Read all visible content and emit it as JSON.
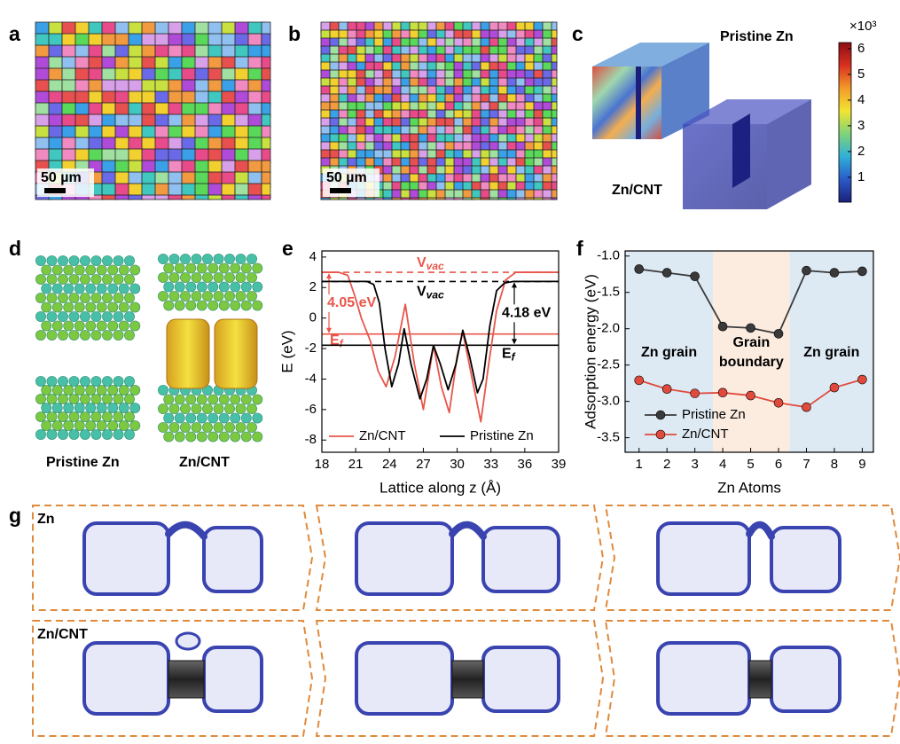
{
  "labels": [
    "a",
    "b",
    "c",
    "d",
    "e",
    "f",
    "g"
  ],
  "panel_a": {
    "scale_bar": "50 µm"
  },
  "panel_b": {
    "scale_bar": "50 µm"
  },
  "panel_c": {
    "top_label": "Pristine Zn",
    "bottom_label": "Zn/CNT"
  },
  "colorbar": {
    "multiplier": "×10³",
    "ticks": [
      1,
      2,
      3,
      4,
      5,
      6
    ],
    "lim": [
      0.03,
      6.24
    ],
    "colors": [
      "#1c1f7a",
      "#2a5bc8",
      "#2fb0d8",
      "#7fd37a",
      "#f2e531",
      "#f39a2a",
      "#d8301f",
      "#8c0d14"
    ]
  },
  "panel_d": {
    "left_label": "Pristine Zn",
    "right_label": "Zn/CNT"
  },
  "panel_g": {
    "row_labels": [
      "Zn",
      "Zn/CNT"
    ]
  },
  "chart_data": [
    {
      "type": "line",
      "xlabel": "Lattice along z (Å)",
      "ylabel": "E (eV)",
      "xlim": [
        18,
        39
      ],
      "ylim": [
        -8.8,
        4.4
      ],
      "xticks": [
        18,
        21,
        24,
        27,
        30,
        33,
        36,
        39
      ],
      "yticks": [
        -8,
        -6,
        -4,
        -2,
        0,
        2,
        4
      ],
      "series": [
        {
          "name": "Zn/CNT",
          "color": "#e8564a",
          "x": [
            18,
            19.5,
            20.3,
            20.9,
            21.5,
            22.3,
            23.0,
            23.7,
            24.5,
            25.4,
            26.2,
            27.0,
            27.9,
            28.6,
            29.3,
            30.0,
            30.5,
            31.2,
            32.1,
            32.8,
            33.5,
            34.3,
            35.2,
            39
          ],
          "values": [
            3.0,
            3.0,
            2.8,
            1.5,
            0.0,
            -1.5,
            -3.5,
            -4.5,
            -2.5,
            0.9,
            -3.0,
            -6.0,
            -1.8,
            -4.5,
            -6.2,
            -2.5,
            -0.9,
            -3.5,
            -6.8,
            -3.0,
            0.5,
            2.5,
            3.0,
            3.0
          ]
        },
        {
          "name": "Pristine Zn",
          "color": "#000000",
          "x": [
            18,
            21,
            22,
            22.6,
            23.1,
            23.6,
            24.2,
            24.8,
            25.3,
            25.9,
            26.7,
            27.3,
            27.9,
            28.5,
            29.2,
            29.9,
            30.5,
            31.1,
            31.8,
            32.3,
            32.9,
            33.5,
            34.2,
            35,
            39
          ],
          "values": [
            2.4,
            2.4,
            2.4,
            2.2,
            1.0,
            -2.0,
            -4.5,
            -3.0,
            -0.7,
            -3.0,
            -5.3,
            -4.0,
            -1.8,
            -3.0,
            -4.7,
            -3.0,
            -0.8,
            -2.5,
            -4.9,
            -4.0,
            -0.5,
            1.8,
            2.3,
            2.4,
            2.4
          ]
        }
      ],
      "reference_lines": [
        {
          "main": "V",
          "sub": "vac",
          "value": 3.0,
          "color": "#e8564a",
          "dashed": true
        },
        {
          "main": "V",
          "sub": "vac",
          "value": 2.4,
          "color": "#000000",
          "dashed": true
        },
        {
          "main": "E",
          "sub": "f",
          "value": -1.05,
          "color": "#e8564a",
          "dashed": false
        },
        {
          "main": "E",
          "sub": "f",
          "value": -1.78,
          "color": "#000000",
          "dashed": false
        }
      ],
      "gaps": [
        {
          "label": "4.05 eV",
          "value": 4.05,
          "color": "#e8564a"
        },
        {
          "label": "4.18 eV",
          "value": 4.18,
          "color": "#000000"
        }
      ],
      "legend": "lower center"
    },
    {
      "type": "line",
      "xlabel": "Zn Atoms",
      "ylabel": "Adsorption energy (eV)",
      "x": [
        1,
        2,
        3,
        4,
        5,
        6,
        7,
        8,
        9
      ],
      "xlim": [
        0.5,
        9.4
      ],
      "ylim": [
        -3.7,
        -0.93
      ],
      "xticks": [
        1,
        2,
        3,
        4,
        5,
        6,
        7,
        8,
        9
      ],
      "yticks": [
        {
          "value": -1,
          "label": "-1.0"
        },
        {
          "value": -1.5,
          "label": "-1.5"
        },
        {
          "value": -2,
          "label": "-2.0"
        },
        {
          "value": -2.5,
          "label": "-2.5"
        },
        {
          "value": -3,
          "label": "-3.0"
        },
        {
          "value": -3.5,
          "label": "-3.5"
        }
      ],
      "regions": [
        {
          "label": [
            "Zn grain"
          ],
          "range": [
            0.5,
            3.65
          ],
          "color": "#dde9f3"
        },
        {
          "label": [
            "Grain",
            "boundary"
          ],
          "range": [
            3.65,
            6.4
          ],
          "color": "#fcebdf"
        },
        {
          "label": [
            "Zn grain"
          ],
          "range": [
            6.4,
            9.4
          ],
          "color": "#dde9f3"
        }
      ],
      "markers": true,
      "series": [
        {
          "name": "Pristine Zn",
          "color": "#3a3a3a",
          "values": [
            -1.18,
            -1.23,
            -1.28,
            -1.97,
            -1.99,
            -2.07,
            -1.2,
            -1.23,
            -1.21
          ]
        },
        {
          "name": "Zn/CNT",
          "color": "#e04a3c",
          "values": [
            -2.71,
            -2.83,
            -2.89,
            -2.88,
            -2.92,
            -3.02,
            -3.08,
            -2.81,
            -2.7
          ]
        }
      ],
      "legend": "lower left"
    }
  ]
}
